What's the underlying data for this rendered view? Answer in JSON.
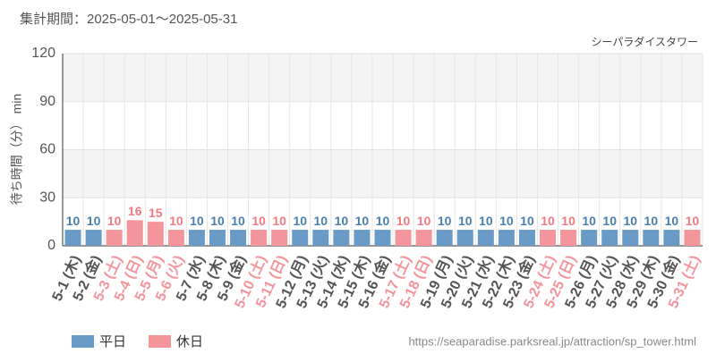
{
  "chart_data": {
    "type": "bar",
    "title": "集計期間：2025-05-01～2025-05-31",
    "subtitle": "シーパラダイスタワー",
    "y_label": "待ち時間（分） min",
    "source": "https://seaparadise.parksreal.jp/attraction/sp_tower.html",
    "categories": [
      "5-1 (木)",
      "5-2 (金)",
      "5-3 (土)",
      "5-4 (日)",
      "5-5 (月)",
      "5-6 (火)",
      "5-7 (水)",
      "5-8 (木)",
      "5-9 (金)",
      "5-10 (土)",
      "5-11 (日)",
      "5-12 (月)",
      "5-13 (火)",
      "5-14 (水)",
      "5-15 (木)",
      "5-16 (金)",
      "5-17 (土)",
      "5-18 (日)",
      "5-19 (月)",
      "5-20 (火)",
      "5-21 (水)",
      "5-22 (木)",
      "5-23 (金)",
      "5-24 (土)",
      "5-25 (日)",
      "5-26 (月)",
      "5-27 (火)",
      "5-28 (水)",
      "5-29 (木)",
      "5-30 (金)",
      "5-31 (土)"
    ],
    "series": [
      {
        "name": "平日",
        "color": "#6a9bc7",
        "label_color": "#4a7fb0",
        "values": [
          10,
          10,
          null,
          null,
          null,
          null,
          10,
          10,
          10,
          null,
          null,
          10,
          10,
          10,
          10,
          10,
          null,
          null,
          10,
          10,
          10,
          10,
          10,
          null,
          null,
          10,
          10,
          10,
          10,
          10,
          null
        ]
      },
      {
        "name": "休日",
        "color": "#f4959b",
        "label_color": "#f07b82",
        "values": [
          null,
          null,
          10,
          16,
          15,
          10,
          null,
          null,
          null,
          10,
          10,
          null,
          null,
          null,
          null,
          null,
          10,
          10,
          null,
          null,
          null,
          null,
          null,
          10,
          10,
          null,
          null,
          null,
          null,
          null,
          10
        ]
      }
    ],
    "ylim": [
      0,
      120
    ],
    "yticks": [
      0,
      30,
      60,
      90,
      120
    ],
    "grid": true
  }
}
